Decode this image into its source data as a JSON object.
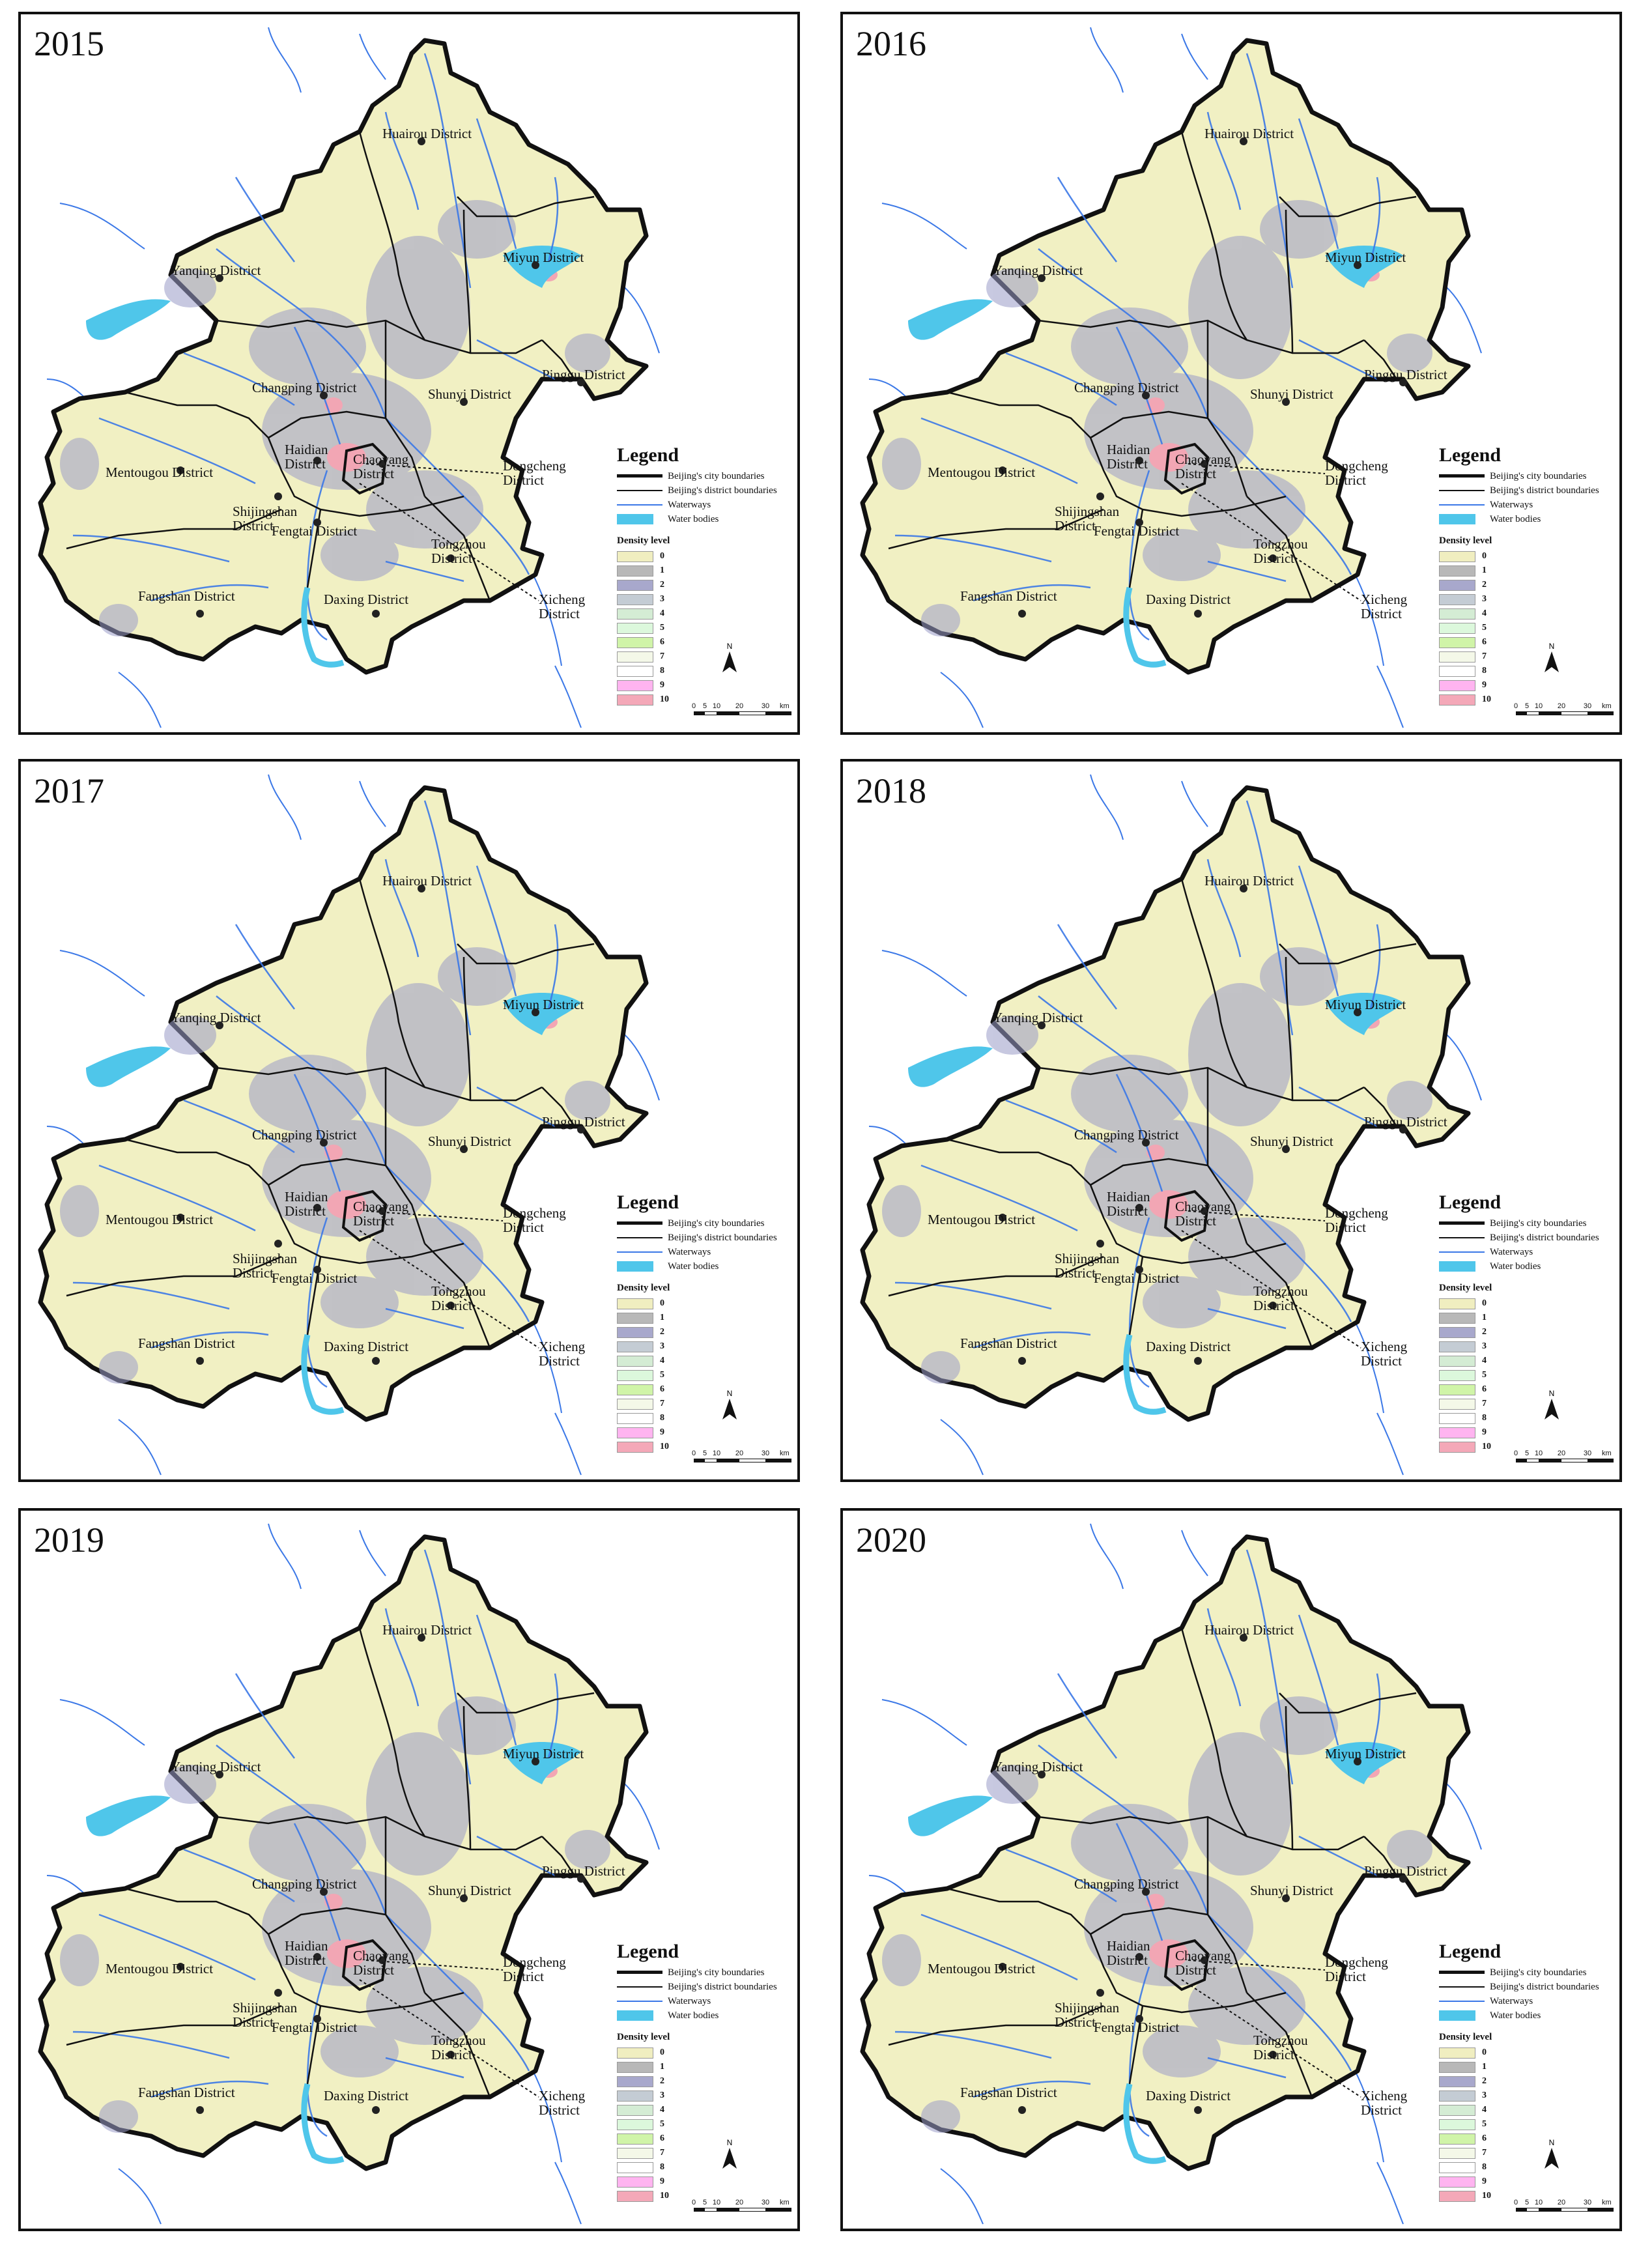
{
  "panels": [
    {
      "year": "2015"
    },
    {
      "year": "2016"
    },
    {
      "year": "2017"
    },
    {
      "year": "2018"
    },
    {
      "year": "2019"
    },
    {
      "year": "2020"
    }
  ],
  "districts": {
    "huairou": "Huairou District",
    "miyun": "Miyun District",
    "yanqing": "Yanqing District",
    "changping": "Changping District",
    "shunyi": "Shunyi District",
    "pinggu": "Pinggu District",
    "haidian": "Haidian District",
    "chaoyang": "Chaoyang District",
    "mentougou": "Mentougou District",
    "shijingshan": "Shijingshan District",
    "fengtai": "Fengtai District",
    "tongzhou": "Tongzhou District",
    "fangshan": "Fangshan District",
    "daxing": "Daxing District",
    "dongcheng": "Dongcheng District",
    "xicheng": "Xicheng District"
  },
  "legend": {
    "title": "Legend",
    "city_boundaries": "Beijing's city boundaries",
    "district_boundaries": "Beijing's district boundaries",
    "waterways": "Waterways",
    "water_bodies": "Water bodies",
    "density_title": "Density level",
    "levels": [
      "0",
      "1",
      "2",
      "3",
      "4",
      "5",
      "6",
      "7",
      "8",
      "9",
      "10"
    ],
    "level_colors": [
      "#f0eec0",
      "#b8b8b8",
      "#a8a8cc",
      "#c4ccd4",
      "#d4ecd4",
      "#dcf8dc",
      "#d0f4a8",
      "#f4f8e8",
      "#ffffff",
      "#ffb4f0",
      "#f4a8b8"
    ]
  },
  "scale": {
    "ticks": [
      "0",
      "5",
      "10",
      "20",
      "30"
    ],
    "unit": "km"
  },
  "north": "N",
  "colors": {
    "land": "#f1f0c3",
    "water": "#4fc6ea",
    "river": "#3b78e7",
    "density": "#9a9cc8",
    "hot": "#f2a6b4"
  }
}
